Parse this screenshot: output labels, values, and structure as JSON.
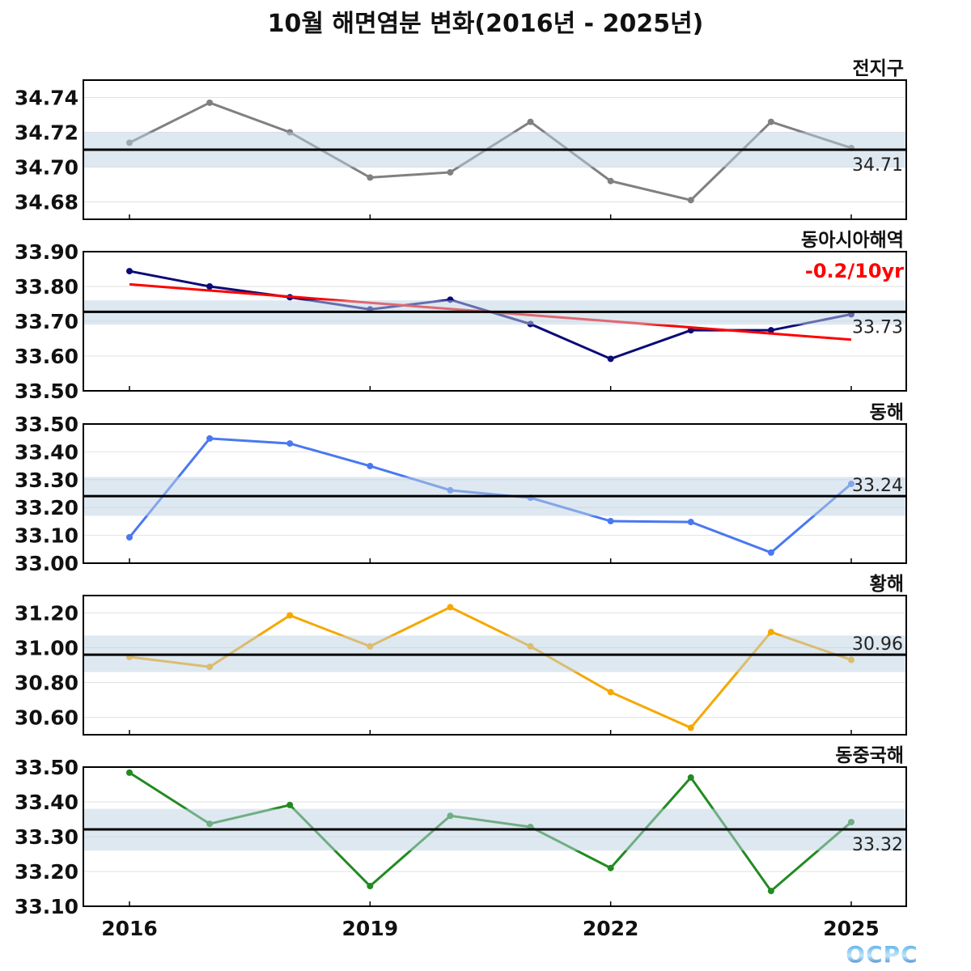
{
  "chart_data": {
    "type": "line",
    "title": "10월 해면염분 변화(2016년 - 2025년)",
    "x": [
      2016,
      2017,
      2018,
      2019,
      2020,
      2021,
      2022,
      2023,
      2024,
      2025
    ],
    "xticks": [
      "2016",
      "2019",
      "2022",
      "2025"
    ],
    "logo": "OCPC",
    "panels": [
      {
        "name": "전지구",
        "color": "#808080",
        "ylim": [
          34.67,
          34.75
        ],
        "yticks": [
          "34.74",
          "34.72",
          "34.70",
          "34.68"
        ],
        "ytick_values": [
          34.74,
          34.72,
          34.7,
          34.68
        ],
        "values": [
          34.714,
          34.737,
          34.72,
          34.694,
          34.697,
          34.726,
          34.692,
          34.681,
          34.726,
          34.711
        ],
        "mean": 34.71,
        "mean_label": "34.71",
        "band": [
          34.7,
          34.72
        ]
      },
      {
        "name": "동아시아해역",
        "color": "#0a0a78",
        "ylim": [
          33.5,
          33.9
        ],
        "yticks": [
          "33.90",
          "33.80",
          "33.70",
          "33.60",
          "33.50"
        ],
        "ytick_values": [
          33.9,
          33.8,
          33.7,
          33.6,
          33.5
        ],
        "values": [
          33.844,
          33.8,
          33.769,
          33.734,
          33.762,
          33.692,
          33.592,
          33.674,
          33.674,
          33.72
        ],
        "mean": 33.727,
        "mean_label": "33.73",
        "band": [
          33.69,
          33.76
        ],
        "trend": {
          "start": 33.806,
          "end": 33.647,
          "label": "-0.2/10yr",
          "color": "#ff0000"
        }
      },
      {
        "name": "동해",
        "color": "#4a78f0",
        "ylim": [
          33.0,
          33.5
        ],
        "yticks": [
          "33.50",
          "33.40",
          "33.30",
          "33.20",
          "33.10",
          "33.00"
        ],
        "ytick_values": [
          33.5,
          33.4,
          33.3,
          33.2,
          33.1,
          33.0
        ],
        "values": [
          33.093,
          33.448,
          33.43,
          33.349,
          33.262,
          33.235,
          33.151,
          33.148,
          33.038,
          33.285
        ],
        "mean": 33.241,
        "mean_label": "33.24",
        "band": [
          33.17,
          33.31
        ]
      },
      {
        "name": "황해",
        "color": "#f5a800",
        "ylim": [
          30.5,
          31.3
        ],
        "yticks": [
          "31.20",
          "31.00",
          "30.80",
          "30.60"
        ],
        "ytick_values": [
          31.2,
          31.0,
          30.8,
          30.6
        ],
        "values": [
          30.947,
          30.89,
          31.186,
          31.008,
          31.233,
          31.008,
          30.745,
          30.54,
          31.09,
          30.93
        ],
        "mean": 30.96,
        "mean_label": "30.96",
        "band": [
          30.86,
          31.07
        ]
      },
      {
        "name": "동중국해",
        "color": "#228b22",
        "ylim": [
          33.1,
          33.5
        ],
        "yticks": [
          "33.50",
          "33.40",
          "33.30",
          "33.20",
          "33.10"
        ],
        "ytick_values": [
          33.5,
          33.4,
          33.3,
          33.2,
          33.1
        ],
        "values": [
          33.484,
          33.337,
          33.391,
          33.158,
          33.36,
          33.328,
          33.21,
          33.47,
          33.144,
          33.342
        ],
        "mean": 33.321,
        "mean_label": "33.32",
        "band": [
          33.26,
          33.38
        ]
      }
    ]
  }
}
